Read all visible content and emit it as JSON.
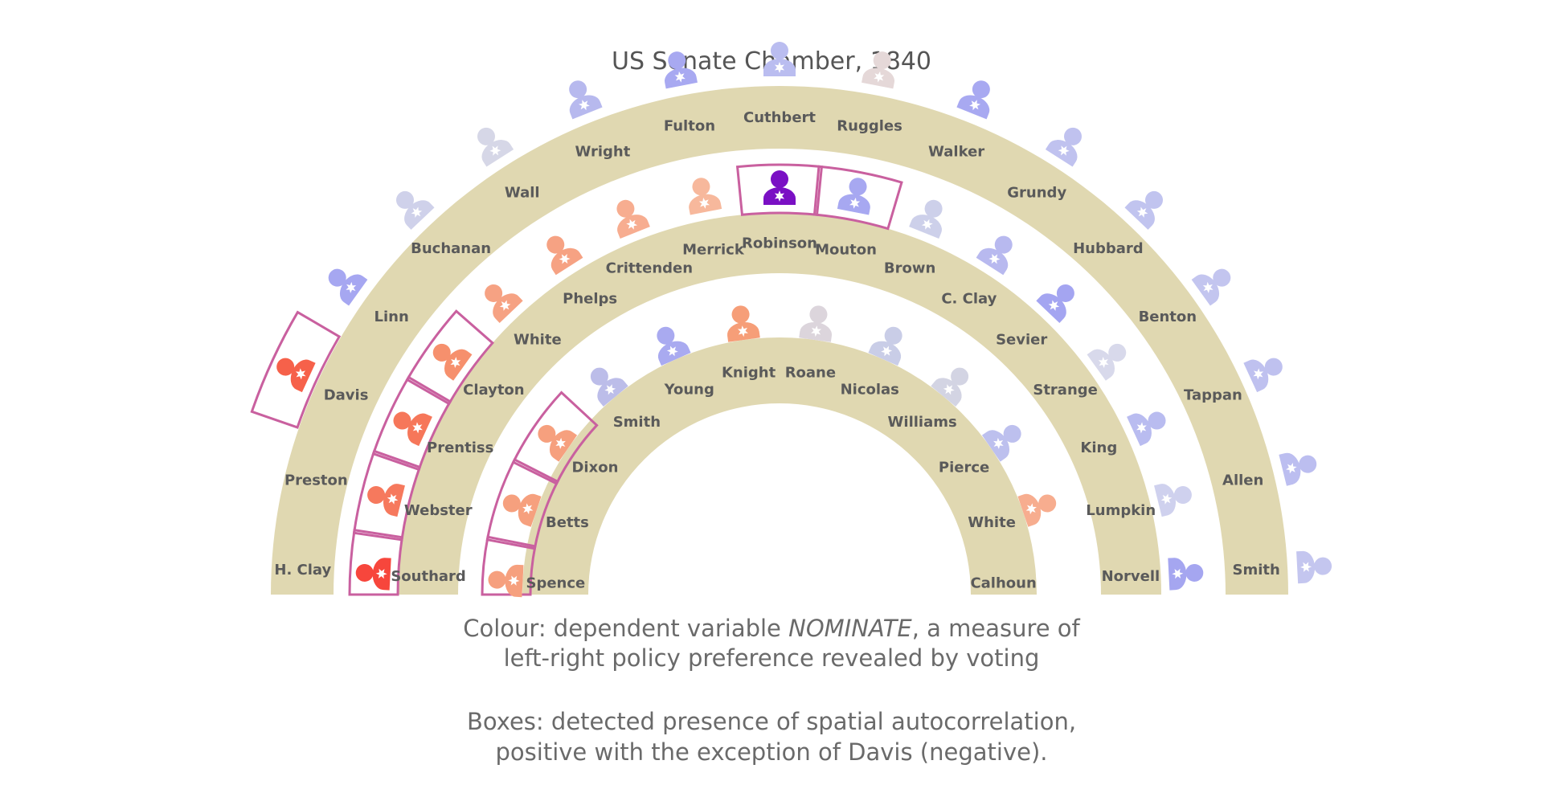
{
  "title": "US Senate Chamber, 1840",
  "caption": {
    "line1_pre": "Colour: dependent variable ",
    "line1_em": "NOMINATE",
    "line1_post": ", a measure of",
    "line2": "left-right policy preference revealed by voting",
    "line3": "Boxes: detected presence of spatial autocorrelation,",
    "line4": "positive with the exception of Davis (negative)."
  },
  "colors": {
    "arc": "#e0d8b1",
    "box": "#c9609f",
    "star": "#ffffff"
  },
  "rows": [
    {
      "row": 1,
      "senators": [
        {
          "name": "Spence",
          "color": "#f6a07e",
          "boxed": true
        },
        {
          "name": "Betts",
          "color": "#f6a07e",
          "boxed": true
        },
        {
          "name": "Dixon",
          "color": "#f6a07e",
          "boxed": true
        },
        {
          "name": "Smith",
          "color": "#bcbde9",
          "boxed": false
        },
        {
          "name": "Young",
          "color": "#a9aaf0",
          "boxed": false
        },
        {
          "name": "Knight",
          "color": "#f69e78",
          "boxed": false
        },
        {
          "name": "Roane",
          "color": "#dcd5dc",
          "boxed": false
        },
        {
          "name": "Nicolas",
          "color": "#c9cde7",
          "boxed": false
        },
        {
          "name": "Williams",
          "color": "#d3d4e3",
          "boxed": false
        },
        {
          "name": "Pierce",
          "color": "#bdc0ee",
          "boxed": false
        },
        {
          "name": "White",
          "color": "#f7ad8f",
          "boxed": false
        },
        {
          "name": "Calhoun",
          "color": "#ffffff",
          "boxed": false
        }
      ]
    },
    {
      "row": 2,
      "senators": [
        {
          "name": "Southard",
          "color": "#f7463c",
          "boxed": true
        },
        {
          "name": "Webster",
          "color": "#f6795d",
          "boxed": true
        },
        {
          "name": "Prentiss",
          "color": "#f6775a",
          "boxed": true
        },
        {
          "name": "Clayton",
          "color": "#f6906d",
          "boxed": true
        },
        {
          "name": "White",
          "color": "#f6a283",
          "boxed": false
        },
        {
          "name": "Phelps",
          "color": "#f6a283",
          "boxed": false
        },
        {
          "name": "Crittenden",
          "color": "#f7ad90",
          "boxed": false
        },
        {
          "name": "Merrick",
          "color": "#f7b89c",
          "boxed": false
        },
        {
          "name": "Robinson",
          "color": "#7a10c4",
          "boxed": true
        },
        {
          "name": "Mouton",
          "color": "#a7a8f1",
          "boxed": true
        },
        {
          "name": "Brown",
          "color": "#cdd0ea",
          "boxed": false
        },
        {
          "name": "C. Clay",
          "color": "#b8b9ef",
          "boxed": false
        },
        {
          "name": "Sevier",
          "color": "#a4a5f1",
          "boxed": false
        },
        {
          "name": "Strange",
          "color": "#d8d9eb",
          "boxed": false
        },
        {
          "name": "King",
          "color": "#b9bcf0",
          "boxed": false
        },
        {
          "name": "Lumpkin",
          "color": "#cfd1ee",
          "boxed": false
        },
        {
          "name": "Norvell",
          "color": "#a5a6f0",
          "boxed": false
        }
      ]
    },
    {
      "row": 3,
      "senators": [
        {
          "name": "H. Clay",
          "color": "#ffffff",
          "boxed": false
        },
        {
          "name": "Preston",
          "color": "#ffffff",
          "boxed": false
        },
        {
          "name": "Davis",
          "color": "#f6614a",
          "boxed": true
        },
        {
          "name": "Linn",
          "color": "#a6a7f1",
          "boxed": false
        },
        {
          "name": "Buchanan",
          "color": "#cfd1ea",
          "boxed": false
        },
        {
          "name": "Wall",
          "color": "#d6d7e7",
          "boxed": false
        },
        {
          "name": "Wright",
          "color": "#b7b9ee",
          "boxed": false
        },
        {
          "name": "Fulton",
          "color": "#a8a9f1",
          "boxed": false
        },
        {
          "name": "Cuthbert",
          "color": "#babdf0",
          "boxed": false
        },
        {
          "name": "Ruggles",
          "color": "#e5d8d8",
          "boxed": false
        },
        {
          "name": "Walker",
          "color": "#a8a9f1",
          "boxed": false
        },
        {
          "name": "Grundy",
          "color": "#c0c2ef",
          "boxed": false
        },
        {
          "name": "Hubbard",
          "color": "#c1c4ef",
          "boxed": false
        },
        {
          "name": "Benton",
          "color": "#c3c5ef",
          "boxed": false
        },
        {
          "name": "Tappan",
          "color": "#bfc1ef",
          "boxed": false
        },
        {
          "name": "Allen",
          "color": "#bcbef0",
          "boxed": false
        },
        {
          "name": "Smith",
          "color": "#c4c6ef",
          "boxed": false
        }
      ]
    }
  ]
}
